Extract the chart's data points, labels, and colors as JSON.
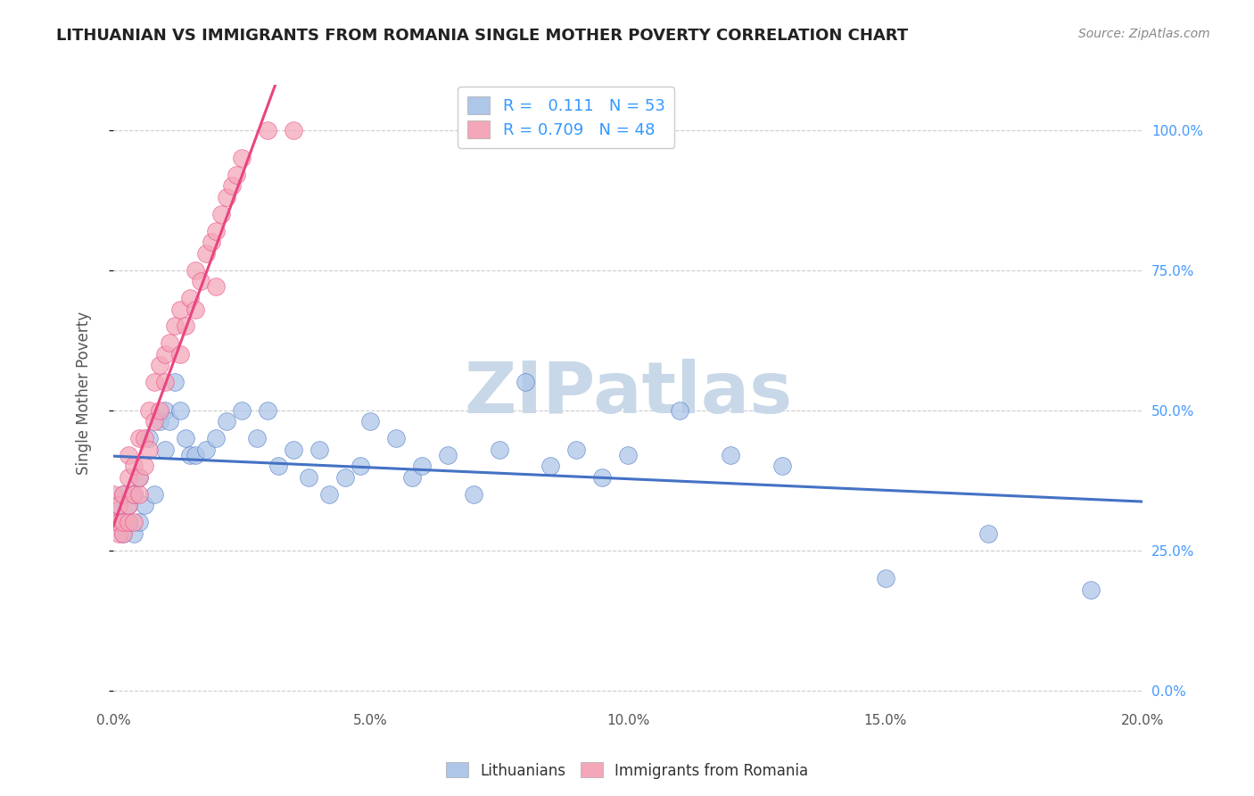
{
  "title": "LITHUANIAN VS IMMIGRANTS FROM ROMANIA SINGLE MOTHER POVERTY CORRELATION CHART",
  "source": "Source: ZipAtlas.com",
  "ylabel": "Single Mother Poverty",
  "watermark": "ZIPatlas",
  "xlim": [
    0.0,
    0.2
  ],
  "ylim": [
    -0.02,
    1.08
  ],
  "xticks": [
    0.0,
    0.05,
    0.1,
    0.15,
    0.2
  ],
  "xtick_labels": [
    "0.0%",
    "5.0%",
    "10.0%",
    "15.0%",
    "20.0%"
  ],
  "ytick_labels_right": [
    "0.0%",
    "25.0%",
    "50.0%",
    "75.0%",
    "100.0%"
  ],
  "yticks": [
    0.0,
    0.25,
    0.5,
    0.75,
    1.0
  ],
  "series": [
    {
      "name": "Lithuanians",
      "color": "#aec6e8",
      "line_color": "#4472c4",
      "R": 0.111,
      "N": 53,
      "x": [
        0.001,
        0.001,
        0.002,
        0.002,
        0.003,
        0.003,
        0.004,
        0.004,
        0.005,
        0.005,
        0.006,
        0.007,
        0.008,
        0.009,
        0.01,
        0.01,
        0.011,
        0.012,
        0.013,
        0.014,
        0.015,
        0.016,
        0.018,
        0.02,
        0.022,
        0.025,
        0.028,
        0.03,
        0.032,
        0.035,
        0.038,
        0.04,
        0.042,
        0.045,
        0.048,
        0.05,
        0.055,
        0.058,
        0.06,
        0.065,
        0.07,
        0.075,
        0.08,
        0.085,
        0.09,
        0.095,
        0.1,
        0.11,
        0.12,
        0.13,
        0.15,
        0.17,
        0.19
      ],
      "y": [
        0.3,
        0.33,
        0.28,
        0.35,
        0.3,
        0.33,
        0.28,
        0.35,
        0.3,
        0.38,
        0.33,
        0.45,
        0.35,
        0.48,
        0.43,
        0.5,
        0.48,
        0.55,
        0.5,
        0.45,
        0.42,
        0.42,
        0.43,
        0.45,
        0.48,
        0.5,
        0.45,
        0.5,
        0.4,
        0.43,
        0.38,
        0.43,
        0.35,
        0.38,
        0.4,
        0.48,
        0.45,
        0.38,
        0.4,
        0.42,
        0.35,
        0.43,
        0.55,
        0.4,
        0.43,
        0.38,
        0.42,
        0.5,
        0.42,
        0.4,
        0.2,
        0.28,
        0.18
      ]
    },
    {
      "name": "Immigrants from Romania",
      "color": "#f4a7b9",
      "line_color": "#e84580",
      "R": 0.709,
      "N": 48,
      "x": [
        0.0,
        0.0,
        0.001,
        0.001,
        0.001,
        0.002,
        0.002,
        0.002,
        0.003,
        0.003,
        0.003,
        0.003,
        0.004,
        0.004,
        0.004,
        0.005,
        0.005,
        0.005,
        0.006,
        0.006,
        0.007,
        0.007,
        0.008,
        0.008,
        0.009,
        0.009,
        0.01,
        0.01,
        0.011,
        0.012,
        0.013,
        0.013,
        0.014,
        0.015,
        0.016,
        0.016,
        0.017,
        0.018,
        0.019,
        0.02,
        0.02,
        0.021,
        0.022,
        0.023,
        0.024,
        0.025,
        0.03,
        0.035
      ],
      "y": [
        0.3,
        0.35,
        0.28,
        0.3,
        0.33,
        0.28,
        0.3,
        0.35,
        0.3,
        0.33,
        0.38,
        0.42,
        0.3,
        0.35,
        0.4,
        0.35,
        0.38,
        0.45,
        0.4,
        0.45,
        0.43,
        0.5,
        0.48,
        0.55,
        0.5,
        0.58,
        0.55,
        0.6,
        0.62,
        0.65,
        0.6,
        0.68,
        0.65,
        0.7,
        0.68,
        0.75,
        0.73,
        0.78,
        0.8,
        0.82,
        0.72,
        0.85,
        0.88,
        0.9,
        0.92,
        0.95,
        1.0,
        1.0
      ]
    }
  ],
  "title_color": "#222222",
  "source_color": "#888888",
  "watermark_color": "#c8d8e8",
  "background_color": "#ffffff",
  "grid_color": "#cccccc"
}
